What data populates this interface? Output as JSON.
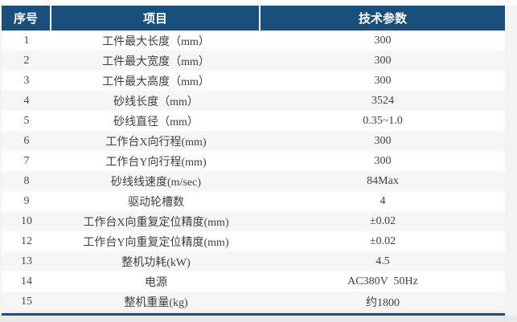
{
  "table": {
    "header": {
      "col_index": "序号",
      "col_item": "项目",
      "col_value": "技术参数"
    },
    "rows": [
      {
        "index": "1",
        "item": "工件最大长度（mm）",
        "value": "300"
      },
      {
        "index": "2",
        "item": "工件最大宽度（mm）",
        "value": "300"
      },
      {
        "index": "3",
        "item": "工件最大高度（mm）",
        "value": "300"
      },
      {
        "index": "4",
        "item": "砂线长度（mm）",
        "value": "3524"
      },
      {
        "index": "5",
        "item": "砂线直径（mm）",
        "value": "0.35~1.0"
      },
      {
        "index": "6",
        "item": "工作台X向行程(mm)",
        "value": "300"
      },
      {
        "index": "7",
        "item": "工作台Y向行程(mm)",
        "value": "300"
      },
      {
        "index": "8",
        "item": "砂线线速度(m/sec)",
        "value": "84Max"
      },
      {
        "index": "9",
        "item": "驱动轮槽数",
        "value": "4"
      },
      {
        "index": "10",
        "item": "工作台X向重复定位精度(mm)",
        "value": "±0.02"
      },
      {
        "index": "12",
        "item": "工作台Y向重复定位精度(mm)",
        "value": "±0.02"
      },
      {
        "index": "13",
        "item": "整机功耗(kW)",
        "value": "4.5"
      },
      {
        "index": "14",
        "item": "电源",
        "value": "AC380V  50Hz"
      },
      {
        "index": "15",
        "item": "整机重量(kg)",
        "value": "约1800"
      }
    ],
    "colors": {
      "header_bg": "#184f7b",
      "header_text": "#ffffff",
      "row_bg": "#ffffff",
      "row_alt_bg": "#f6f6f6",
      "accent_line": "#184f7b",
      "body_text": "#404040"
    }
  },
  "chart_data": {
    "type": "table",
    "columns": [
      "序号",
      "项目",
      "技术参数"
    ],
    "rows": [
      [
        "1",
        "工件最大长度（mm）",
        "300"
      ],
      [
        "2",
        "工件最大宽度（mm）",
        "300"
      ],
      [
        "3",
        "工件最大高度（mm）",
        "300"
      ],
      [
        "4",
        "砂线长度（mm）",
        "3524"
      ],
      [
        "5",
        "砂线直径（mm）",
        "0.35~1.0"
      ],
      [
        "6",
        "工作台X向行程(mm)",
        "300"
      ],
      [
        "7",
        "工作台Y向行程(mm)",
        "300"
      ],
      [
        "8",
        "砂线线速度(m/sec)",
        "84Max"
      ],
      [
        "9",
        "驱动轮槽数",
        "4"
      ],
      [
        "10",
        "工作台X向重复定位精度(mm)",
        "±0.02"
      ],
      [
        "12",
        "工作台Y向重复定位精度(mm)",
        "±0.02"
      ],
      [
        "13",
        "整机功耗(kW)",
        "4.5"
      ],
      [
        "14",
        "电源",
        "AC380V  50Hz"
      ],
      [
        "15",
        "整机重量(kg)",
        "约1800"
      ]
    ]
  }
}
